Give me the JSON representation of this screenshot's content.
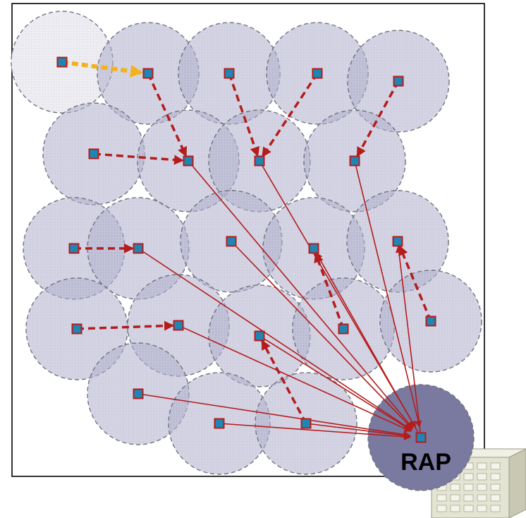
{
  "diagram": {
    "rap_label": "RAP",
    "colors": {
      "coverage_fill": "#a9a9c9",
      "coverage_stroke": "#6f6f7f",
      "idle_coverage_fill": "#eeeef3",
      "rap_fill": "#7a7aa0",
      "node_fill": "#1f86b3",
      "node_stroke": "#b51c1c",
      "relay_link": "#b51c1c",
      "direct_link": "#b51c1c",
      "pending_link": "#f2b21e",
      "frame_stroke": "#000000",
      "building_fill": "#e4e4d4",
      "building_side": "#c9c9b3",
      "building_window": "#f4f4ea"
    },
    "icons": {
      "node": "square-node-icon",
      "gateway_building": "building-icon"
    }
  }
}
